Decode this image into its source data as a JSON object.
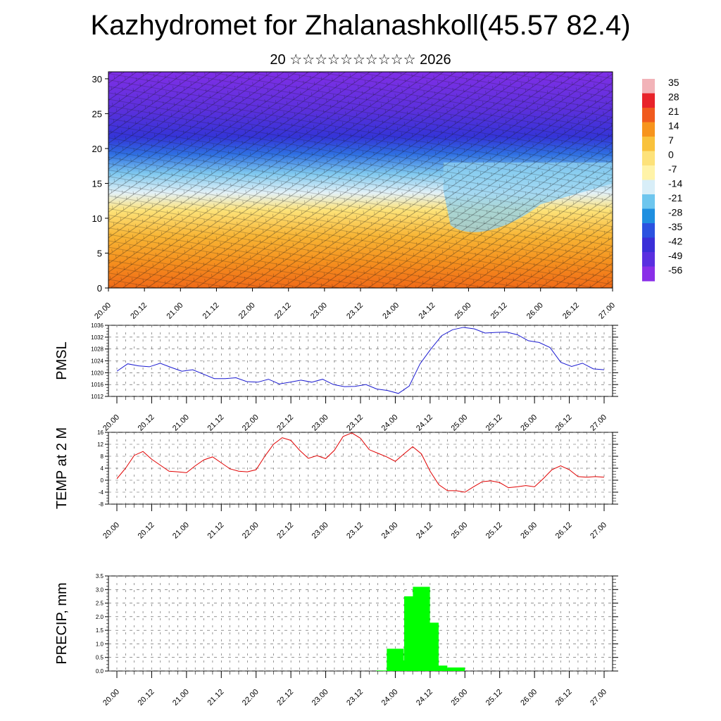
{
  "header": {
    "title": "Kazhydromet for Zhalanashkoll(45.57 82.4)",
    "subtitle": "20 ☆☆☆☆☆☆☆☆☆☆ 2026"
  },
  "chart_data": [
    {
      "type": "heatmap",
      "name": "vertical-section",
      "description_label": "",
      "ylim": [
        0,
        31
      ],
      "yticks": [
        "0",
        "5",
        "10",
        "15",
        "20",
        "25",
        "30"
      ],
      "xticks": [
        "20.00",
        "20.12",
        "21.00",
        "21.12",
        "22.00",
        "22.12",
        "23.00",
        "23.12",
        "24.00",
        "24.12",
        "25.00",
        "25.12",
        "26.00",
        "26.12",
        "27.00"
      ],
      "colorbar_labels": [
        "35",
        "28",
        "21",
        "14",
        "7",
        "0",
        "-7",
        "-14",
        "-21",
        "-28",
        "-35",
        "-42",
        "-49",
        "-56"
      ],
      "colorbar_colors": [
        "#f2b3b8",
        "#e8232a",
        "#f05a1e",
        "#f7941d",
        "#f9c23c",
        "#fde27a",
        "#fff3a8",
        "#d8eef8",
        "#6ec6ee",
        "#1f8fe0",
        "#2b52e0",
        "#3a2fd8",
        "#5a2fe0",
        "#8a2fe8"
      ]
    },
    {
      "type": "line",
      "name": "pmsl",
      "ylabel": "PMSL",
      "ylim": [
        1012,
        1036
      ],
      "yticks": [
        "1012",
        "1016",
        "1020",
        "1024",
        "1028",
        "1032",
        "1036"
      ],
      "xticks": [
        "20.00",
        "20.12",
        "21.00",
        "21.12",
        "22.00",
        "22.12",
        "23.00",
        "23.12",
        "24.00",
        "24.12",
        "25.00",
        "25.12",
        "26.00",
        "26.12",
        "27.00"
      ],
      "color": "#1a1ad0",
      "values": [
        1020.5,
        1023,
        1022.3,
        1022,
        1023.2,
        1021.8,
        1020.5,
        1021,
        1019.5,
        1018,
        1018,
        1018.3,
        1017,
        1016.8,
        1017.8,
        1016.2,
        1016.8,
        1017.5,
        1016.8,
        1017.8,
        1016,
        1015.3,
        1015.4,
        1016,
        1014.5,
        1014,
        1013,
        1015.5,
        1023,
        1028,
        1032.5,
        1034.5,
        1035.3,
        1034.8,
        1033.4,
        1033.6,
        1033.7,
        1032.8,
        1030.8,
        1030.2,
        1028.5,
        1023.5,
        1022.1,
        1023.2,
        1021.3,
        1021
      ]
    },
    {
      "type": "line",
      "name": "temp-2m",
      "ylabel": "TEMP at 2 M",
      "ylim": [
        -8,
        16
      ],
      "yticks": [
        "-8",
        "-4",
        "0",
        "4",
        "8",
        "12",
        "16"
      ],
      "xticks": [
        "20.00",
        "20.12",
        "21.00",
        "21.12",
        "22.00",
        "22.12",
        "23.00",
        "23.12",
        "24.00",
        "24.12",
        "25.00",
        "25.12",
        "26.00",
        "26.12",
        "27.00"
      ],
      "color": "#e00000",
      "values": [
        0.5,
        4,
        8.3,
        9.6,
        7,
        5,
        3,
        2.8,
        2.5,
        4.8,
        6.8,
        7.8,
        5.8,
        3.8,
        3,
        2.8,
        3.5,
        8,
        12,
        14.2,
        13.3,
        10,
        7.3,
        8.2,
        7.2,
        10,
        14.6,
        15.8,
        14,
        10.2,
        9,
        7.8,
        6.3,
        8.8,
        11.2,
        8.8,
        3,
        -1.5,
        -3.5,
        -3.5,
        -4,
        -2.2,
        -0.5,
        -0.2,
        -0.8,
        -2.5,
        -2.2,
        -1.8,
        -2.2,
        0.5,
        3.5,
        4.8,
        3.5,
        1.2,
        1,
        1.2,
        1
      ]
    },
    {
      "type": "bar",
      "name": "precip",
      "ylabel": "PRECIP, mm",
      "ylim": [
        0,
        3.5
      ],
      "yticks": [
        "0.0",
        "0.5",
        "1.0",
        "1.5",
        "2.0",
        "2.5",
        "3.0",
        "3.5"
      ],
      "xticks": [
        "20.00",
        "20.12",
        "21.00",
        "21.12",
        "22.00",
        "22.12",
        "23.00",
        "23.12",
        "24.00",
        "24.12",
        "25.00",
        "25.12",
        "26.00",
        "26.12",
        "27.00"
      ],
      "color": "#00ff00",
      "bars": [
        {
          "t": 3.85,
          "v": 0.02
        },
        {
          "t": 4.0,
          "v": 0.82
        },
        {
          "t": 4.125,
          "v": 0.38
        },
        {
          "t": 4.25,
          "v": 2.75
        },
        {
          "t": 4.375,
          "v": 3.1
        },
        {
          "t": 4.5,
          "v": 1.78
        },
        {
          "t": 4.625,
          "v": 0.2
        },
        {
          "t": 4.75,
          "v": 0.09
        },
        {
          "t": 4.875,
          "v": 0.13
        }
      ]
    }
  ]
}
